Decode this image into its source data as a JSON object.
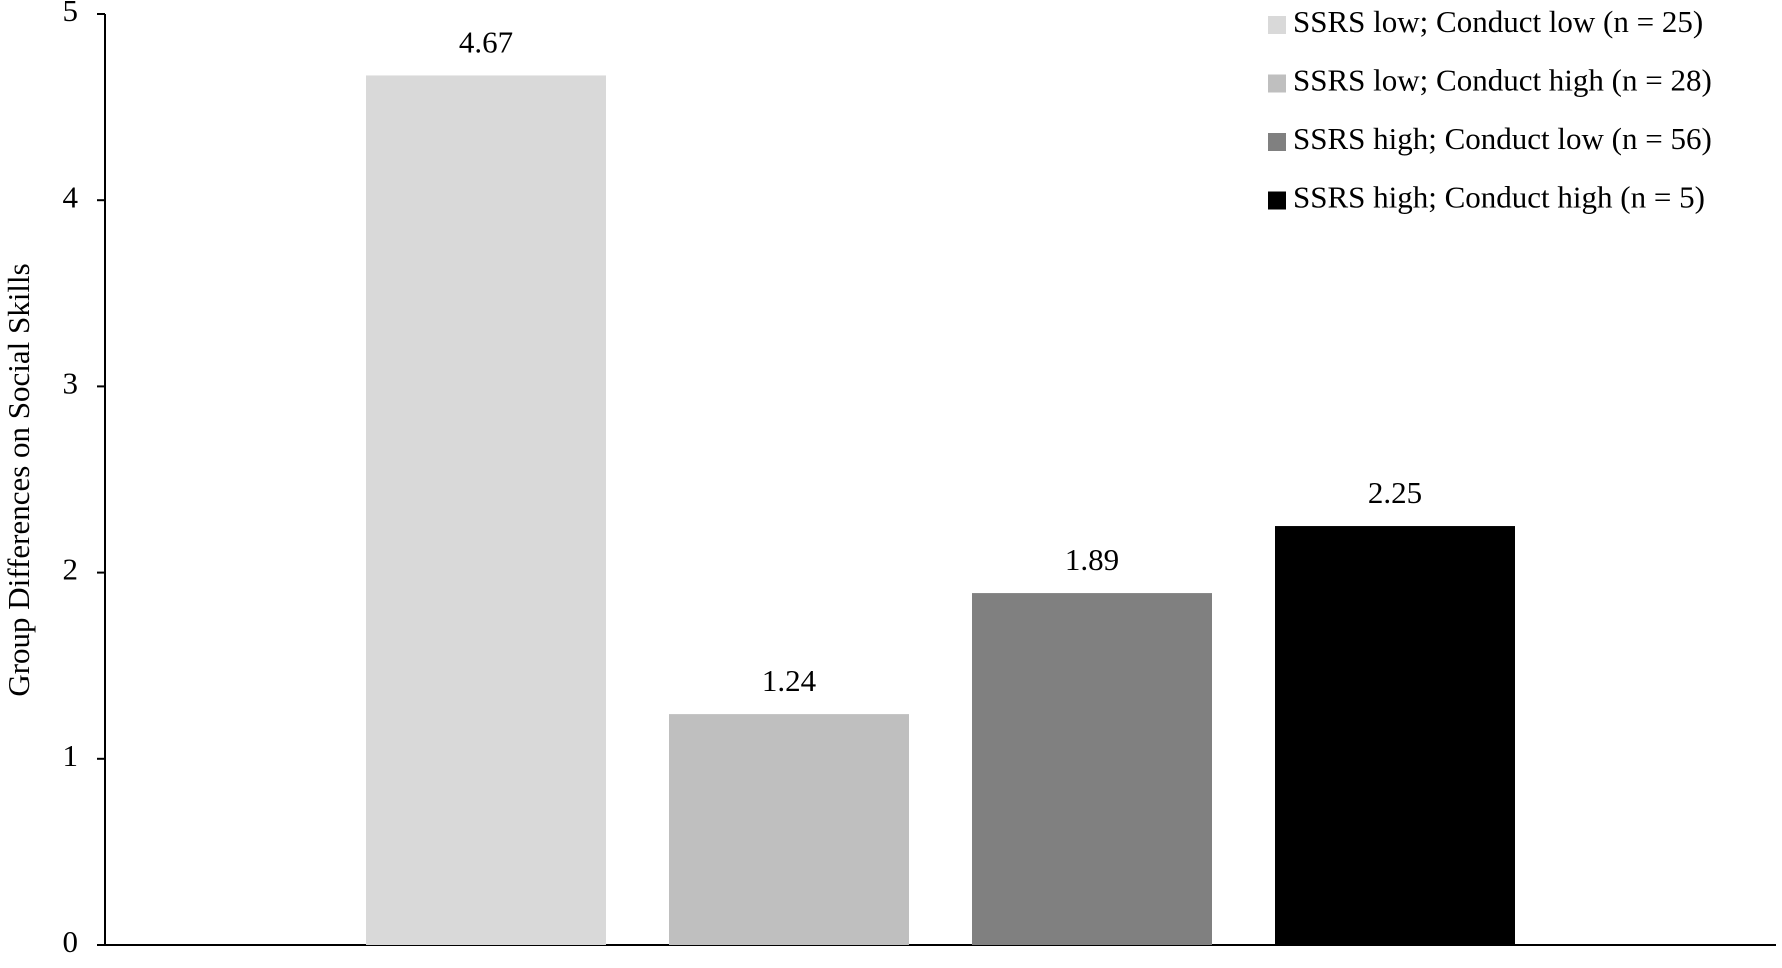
{
  "chart_data": {
    "type": "bar",
    "y_label": "Group Differences on Social Skills",
    "categories": [
      null
    ],
    "series": [
      {
        "name": "SSRS low; Conduct low (n = 25)",
        "color": "#d9d9d9",
        "values": [
          4.67
        ]
      },
      {
        "name": "SSRS low; Conduct high (n = 28)",
        "color": "#bfbfbf",
        "values": [
          1.24
        ]
      },
      {
        "name": "SSRS high; Conduct low (n = 56)",
        "color": "#808080",
        "values": [
          1.89
        ]
      },
      {
        "name": "SSRS high; Conduct high (n = 5)",
        "color": "#000000",
        "values": [
          2.25
        ]
      }
    ],
    "ylim": [
      0,
      5
    ],
    "yticks": [
      0,
      1,
      2,
      3,
      4,
      5
    ],
    "grid": false,
    "legend": "top-right"
  }
}
